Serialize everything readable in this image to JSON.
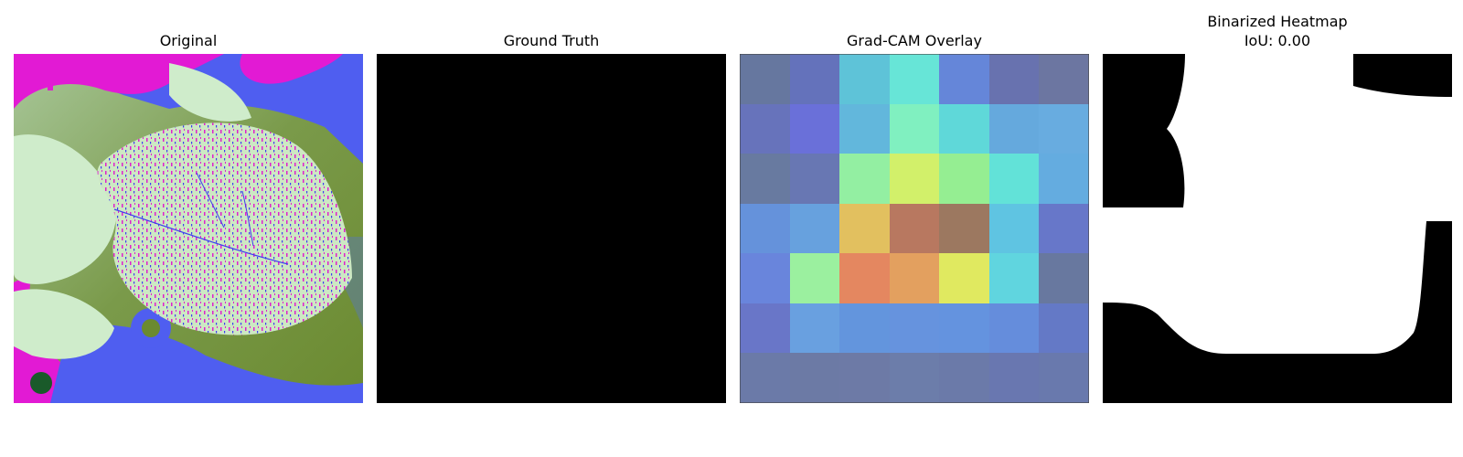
{
  "panels": [
    {
      "id": "original",
      "title": "Original",
      "image": "leaf-photo"
    },
    {
      "id": "ground-truth",
      "title": "Ground Truth",
      "image": "black-mask"
    },
    {
      "id": "gradcam",
      "title": "Grad-CAM Overlay",
      "image": "heatmap-grid"
    },
    {
      "id": "binarized",
      "title_line1": "Binarized Heatmap",
      "title_line2": "IoU: 0.00",
      "image": "binary-mask"
    }
  ],
  "gradcam_grid": [
    [
      "#66779f",
      "#6472bb",
      "#5ec3d8",
      "#67e5d7",
      "#6586d9",
      "#6872af",
      "#6c76a1"
    ],
    [
      "#6773bb",
      "#6a70d9",
      "#62b7dc",
      "#80f0c0",
      "#5fd8d9",
      "#65a9dd",
      "#68ace0"
    ],
    [
      "#687aa0",
      "#6877b3",
      "#93efa2",
      "#d2f06a",
      "#95ee92",
      "#62e2d8",
      "#64ace0"
    ],
    [
      "#6592db",
      "#67a1de",
      "#e2c05f",
      "#b87860",
      "#9c7860",
      "#5fc4e2",
      "#6777c9"
    ],
    [
      "#6985dc",
      "#9bf09f",
      "#e48760",
      "#e3a05f",
      "#e0e960",
      "#60d5df",
      "#68789f"
    ],
    [
      "#6976c8",
      "#69a0e0",
      "#6395dd",
      "#6693de",
      "#6493df",
      "#658ddc",
      "#6479c6"
    ],
    [
      "#6b7aa8",
      "#6c7aa5",
      "#6d7aa6",
      "#6c7daa",
      "#6b7aa9",
      "#6977b0",
      "#6979ad"
    ]
  ]
}
